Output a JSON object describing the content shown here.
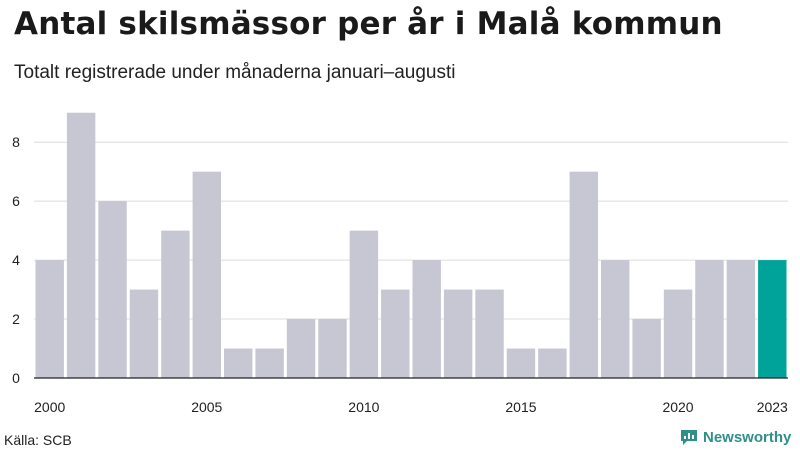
{
  "title": "Antal skilsmässor per år i Malå kommun",
  "subtitle": "Totalt registrerade under månaderna januari–augusti",
  "source": "Källa: SCB",
  "brand": "Newsworthy",
  "colors": {
    "bar": "#c7c6d3",
    "highlight": "#00a39a",
    "grid": "#dcdcdc",
    "axis": "#222222"
  },
  "chart_data": {
    "type": "bar",
    "title": "Antal skilsmässor per år i Malå kommun",
    "xlabel": "",
    "ylabel": "",
    "categories": [
      2000,
      2001,
      2002,
      2003,
      2004,
      2005,
      2006,
      2007,
      2008,
      2009,
      2010,
      2011,
      2012,
      2013,
      2014,
      2015,
      2016,
      2017,
      2018,
      2019,
      2020,
      2021,
      2022,
      2023
    ],
    "values": [
      4,
      9,
      6,
      3,
      5,
      7,
      1,
      1,
      2,
      2,
      5,
      3,
      4,
      3,
      3,
      1,
      1,
      7,
      4,
      2,
      3,
      4,
      4,
      4
    ],
    "highlight": 2023,
    "ylim": [
      0,
      9.5
    ],
    "yticks": [
      0,
      2,
      4,
      6,
      8
    ],
    "xtick_labels": [
      "2000",
      "2005",
      "2010",
      "2015",
      "2020",
      "2023"
    ]
  }
}
